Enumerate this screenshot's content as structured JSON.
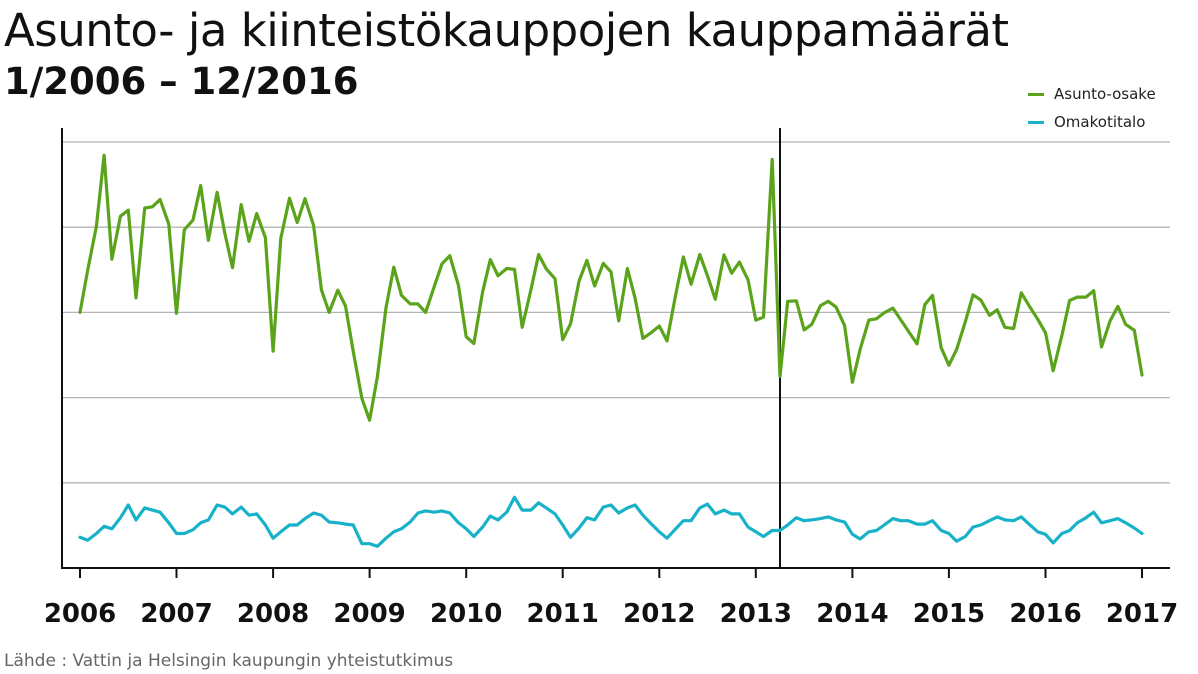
{
  "header": {
    "title": "Asunto- ja kiinteistökauppojen kauppamäärät",
    "subtitle": "1/2006 – 12/2016"
  },
  "source_label": "Lähde : Vattin ja Helsingin kaupungin yhteistutkimus",
  "colors": {
    "asunto": "#5aa31b",
    "omakoti": "#18b2c8",
    "grid": "#b4b4b4",
    "axis": "#111111"
  },
  "chart_data": {
    "type": "line",
    "title": "Asunto- ja kiinteistökauppojen kauppamäärät",
    "subtitle": "1/2006 – 12/2016",
    "xlabel": "",
    "ylabel": "",
    "x_ticks": [
      "2006",
      "2007",
      "2008",
      "2009",
      "2010",
      "2011",
      "2012",
      "2013",
      "2014",
      "2015",
      "2016",
      "2017"
    ],
    "xlim": [
      2006,
      2017
    ],
    "ylim": [
      0,
      100
    ],
    "y_gridlines": [
      0,
      20,
      40,
      60,
      80,
      100
    ],
    "y_tick_labels_shown": false,
    "grid": true,
    "legend_position": "top-right",
    "break_at": 2013.25,
    "series": [
      {
        "name": "Asunto-osake",
        "color": "#5aa31b",
        "points": [
          [
            2006.0,
            60.0
          ],
          [
            2006.08,
            69.9
          ],
          [
            2006.17,
            80.2
          ],
          [
            2006.25,
            96.9
          ],
          [
            2006.33,
            72.5
          ],
          [
            2006.42,
            82.6
          ],
          [
            2006.5,
            84.0
          ],
          [
            2006.58,
            63.4
          ],
          [
            2006.67,
            84.5
          ],
          [
            2006.75,
            84.8
          ],
          [
            2006.83,
            86.5
          ],
          [
            2006.92,
            80.7
          ],
          [
            2007.0,
            59.8
          ],
          [
            2007.08,
            79.4
          ],
          [
            2007.17,
            81.7
          ],
          [
            2007.25,
            89.8
          ],
          [
            2007.33,
            76.9
          ],
          [
            2007.42,
            88.2
          ],
          [
            2007.5,
            78.6
          ],
          [
            2007.58,
            70.5
          ],
          [
            2007.67,
            85.3
          ],
          [
            2007.75,
            76.7
          ],
          [
            2007.83,
            83.2
          ],
          [
            2007.92,
            77.5
          ],
          [
            2008.0,
            50.9
          ],
          [
            2008.08,
            77.4
          ],
          [
            2008.17,
            86.8
          ],
          [
            2008.25,
            81.1
          ],
          [
            2008.33,
            86.7
          ],
          [
            2008.42,
            80.4
          ],
          [
            2008.5,
            65.3
          ],
          [
            2008.58,
            60.0
          ],
          [
            2008.67,
            65.2
          ],
          [
            2008.75,
            61.5
          ],
          [
            2008.83,
            50.9
          ],
          [
            2008.92,
            39.8
          ],
          [
            2009.0,
            34.7
          ],
          [
            2009.08,
            44.9
          ],
          [
            2009.17,
            61.1
          ],
          [
            2009.25,
            70.6
          ],
          [
            2009.33,
            64.0
          ],
          [
            2009.42,
            62.0
          ],
          [
            2009.5,
            62.0
          ],
          [
            2009.58,
            60.0
          ],
          [
            2009.67,
            66.1
          ],
          [
            2009.75,
            71.4
          ],
          [
            2009.83,
            73.3
          ],
          [
            2009.92,
            66.3
          ],
          [
            2010.0,
            54.3
          ],
          [
            2010.08,
            52.7
          ],
          [
            2010.17,
            64.8
          ],
          [
            2010.25,
            72.4
          ],
          [
            2010.33,
            68.6
          ],
          [
            2010.42,
            70.3
          ],
          [
            2010.5,
            70.1
          ],
          [
            2010.58,
            56.5
          ],
          [
            2010.67,
            65.3
          ],
          [
            2010.75,
            73.6
          ],
          [
            2010.83,
            70.2
          ],
          [
            2010.92,
            67.9
          ],
          [
            2011.0,
            53.6
          ],
          [
            2011.08,
            57.3
          ],
          [
            2011.17,
            67.4
          ],
          [
            2011.25,
            72.2
          ],
          [
            2011.33,
            66.2
          ],
          [
            2011.42,
            71.5
          ],
          [
            2011.5,
            69.5
          ],
          [
            2011.58,
            58.0
          ],
          [
            2011.67,
            70.3
          ],
          [
            2011.75,
            63.3
          ],
          [
            2011.83,
            53.9
          ],
          [
            2011.92,
            55.3
          ],
          [
            2012.0,
            56.8
          ],
          [
            2012.08,
            53.3
          ],
          [
            2012.17,
            64.2
          ],
          [
            2012.25,
            73.0
          ],
          [
            2012.33,
            66.6
          ],
          [
            2012.42,
            73.6
          ],
          [
            2012.5,
            68.6
          ],
          [
            2012.58,
            63.1
          ],
          [
            2012.67,
            73.5
          ],
          [
            2012.75,
            69.2
          ],
          [
            2012.83,
            71.8
          ],
          [
            2012.92,
            67.6
          ],
          [
            2013.0,
            58.2
          ],
          [
            2013.08,
            58.9
          ],
          [
            2013.17,
            95.9
          ],
          [
            2013.25,
            45.0
          ],
          [
            2013.33,
            62.6
          ],
          [
            2013.42,
            62.7
          ],
          [
            2013.5,
            55.9
          ],
          [
            2013.58,
            57.2
          ],
          [
            2013.67,
            61.6
          ],
          [
            2013.75,
            62.6
          ],
          [
            2013.83,
            61.3
          ],
          [
            2013.92,
            56.9
          ],
          [
            2014.0,
            43.6
          ],
          [
            2014.08,
            51.3
          ],
          [
            2014.17,
            58.2
          ],
          [
            2014.25,
            58.5
          ],
          [
            2014.33,
            59.9
          ],
          [
            2014.42,
            61.0
          ],
          [
            2014.5,
            58.3
          ],
          [
            2014.58,
            55.6
          ],
          [
            2014.67,
            52.6
          ],
          [
            2014.75,
            61.8
          ],
          [
            2014.83,
            64.0
          ],
          [
            2014.92,
            51.7
          ],
          [
            2015.0,
            47.6
          ],
          [
            2015.08,
            51.3
          ],
          [
            2015.17,
            57.8
          ],
          [
            2015.25,
            64.1
          ],
          [
            2015.33,
            62.9
          ],
          [
            2015.42,
            59.3
          ],
          [
            2015.5,
            60.6
          ],
          [
            2015.58,
            56.5
          ],
          [
            2015.67,
            56.2
          ],
          [
            2015.75,
            64.6
          ],
          [
            2015.83,
            61.6
          ],
          [
            2015.92,
            58.4
          ],
          [
            2016.0,
            55.2
          ],
          [
            2016.08,
            46.3
          ],
          [
            2016.17,
            54.6
          ],
          [
            2016.25,
            62.8
          ],
          [
            2016.33,
            63.6
          ],
          [
            2016.42,
            63.6
          ],
          [
            2016.5,
            65.1
          ],
          [
            2016.58,
            51.9
          ],
          [
            2016.67,
            58.0
          ],
          [
            2016.75,
            61.4
          ],
          [
            2016.83,
            57.2
          ],
          [
            2016.92,
            55.8
          ],
          [
            2017.0,
            45.3
          ]
        ]
      },
      {
        "name": "Omakotitalo",
        "color": "#18b2c8",
        "points": [
          [
            2006.0,
            7.2
          ],
          [
            2006.08,
            6.5
          ],
          [
            2006.17,
            8.1
          ],
          [
            2006.25,
            9.8
          ],
          [
            2006.33,
            9.2
          ],
          [
            2006.42,
            11.8
          ],
          [
            2006.5,
            14.8
          ],
          [
            2006.58,
            11.3
          ],
          [
            2006.67,
            14.1
          ],
          [
            2006.75,
            13.6
          ],
          [
            2006.83,
            13.1
          ],
          [
            2006.92,
            10.6
          ],
          [
            2007.0,
            8.1
          ],
          [
            2007.08,
            8.1
          ],
          [
            2007.17,
            9.0
          ],
          [
            2007.25,
            10.6
          ],
          [
            2007.33,
            11.3
          ],
          [
            2007.42,
            14.8
          ],
          [
            2007.5,
            14.3
          ],
          [
            2007.58,
            12.7
          ],
          [
            2007.67,
            14.3
          ],
          [
            2007.75,
            12.4
          ],
          [
            2007.83,
            12.7
          ],
          [
            2007.92,
            10.1
          ],
          [
            2008.0,
            7.0
          ],
          [
            2008.08,
            8.5
          ],
          [
            2008.17,
            10.1
          ],
          [
            2008.25,
            10.1
          ],
          [
            2008.33,
            11.6
          ],
          [
            2008.42,
            12.9
          ],
          [
            2008.5,
            12.4
          ],
          [
            2008.58,
            10.8
          ],
          [
            2008.67,
            10.6
          ],
          [
            2008.75,
            10.3
          ],
          [
            2008.83,
            10.1
          ],
          [
            2008.92,
            5.7
          ],
          [
            2009.0,
            5.7
          ],
          [
            2009.08,
            5.1
          ],
          [
            2009.17,
            7.0
          ],
          [
            2009.25,
            8.5
          ],
          [
            2009.33,
            9.2
          ],
          [
            2009.42,
            10.8
          ],
          [
            2009.5,
            12.9
          ],
          [
            2009.58,
            13.4
          ],
          [
            2009.67,
            13.1
          ],
          [
            2009.75,
            13.4
          ],
          [
            2009.83,
            12.9
          ],
          [
            2009.92,
            10.6
          ],
          [
            2010.0,
            9.2
          ],
          [
            2010.08,
            7.4
          ],
          [
            2010.17,
            9.6
          ],
          [
            2010.25,
            12.2
          ],
          [
            2010.33,
            11.3
          ],
          [
            2010.42,
            13.1
          ],
          [
            2010.5,
            16.6
          ],
          [
            2010.58,
            13.6
          ],
          [
            2010.67,
            13.6
          ],
          [
            2010.75,
            15.3
          ],
          [
            2010.83,
            14.1
          ],
          [
            2010.92,
            12.7
          ],
          [
            2011.0,
            10.1
          ],
          [
            2011.08,
            7.2
          ],
          [
            2011.17,
            9.4
          ],
          [
            2011.25,
            11.8
          ],
          [
            2011.33,
            11.3
          ],
          [
            2011.42,
            14.3
          ],
          [
            2011.5,
            14.8
          ],
          [
            2011.58,
            12.9
          ],
          [
            2011.67,
            14.1
          ],
          [
            2011.75,
            14.8
          ],
          [
            2011.83,
            12.4
          ],
          [
            2011.92,
            10.3
          ],
          [
            2012.0,
            8.5
          ],
          [
            2012.08,
            7.0
          ],
          [
            2012.17,
            9.2
          ],
          [
            2012.25,
            11.1
          ],
          [
            2012.33,
            11.1
          ],
          [
            2012.42,
            14.1
          ],
          [
            2012.5,
            15.0
          ],
          [
            2012.58,
            12.7
          ],
          [
            2012.67,
            13.6
          ],
          [
            2012.75,
            12.7
          ],
          [
            2012.83,
            12.7
          ],
          [
            2012.92,
            9.6
          ],
          [
            2013.0,
            8.5
          ],
          [
            2013.08,
            7.4
          ],
          [
            2013.17,
            8.8
          ],
          [
            2013.25,
            8.8
          ],
          [
            2013.33,
            10.1
          ],
          [
            2013.42,
            11.8
          ],
          [
            2013.5,
            11.1
          ],
          [
            2013.58,
            11.3
          ],
          [
            2013.67,
            11.6
          ],
          [
            2013.75,
            12.0
          ],
          [
            2013.83,
            11.3
          ],
          [
            2013.92,
            10.8
          ],
          [
            2014.0,
            7.9
          ],
          [
            2014.08,
            6.8
          ],
          [
            2014.17,
            8.5
          ],
          [
            2014.25,
            8.8
          ],
          [
            2014.33,
            10.1
          ],
          [
            2014.42,
            11.6
          ],
          [
            2014.5,
            11.1
          ],
          [
            2014.58,
            11.1
          ],
          [
            2014.67,
            10.3
          ],
          [
            2014.75,
            10.3
          ],
          [
            2014.83,
            11.1
          ],
          [
            2014.92,
            8.8
          ],
          [
            2015.0,
            8.1
          ],
          [
            2015.08,
            6.3
          ],
          [
            2015.17,
            7.4
          ],
          [
            2015.25,
            9.6
          ],
          [
            2015.33,
            10.1
          ],
          [
            2015.42,
            11.1
          ],
          [
            2015.5,
            12.0
          ],
          [
            2015.58,
            11.3
          ],
          [
            2015.67,
            11.1
          ],
          [
            2015.75,
            12.0
          ],
          [
            2015.83,
            10.3
          ],
          [
            2015.92,
            8.5
          ],
          [
            2016.0,
            7.9
          ],
          [
            2016.08,
            5.9
          ],
          [
            2016.17,
            8.1
          ],
          [
            2016.25,
            8.8
          ],
          [
            2016.33,
            10.6
          ],
          [
            2016.42,
            11.8
          ],
          [
            2016.5,
            13.1
          ],
          [
            2016.58,
            10.6
          ],
          [
            2016.67,
            11.1
          ],
          [
            2016.75,
            11.6
          ],
          [
            2016.83,
            10.6
          ],
          [
            2016.92,
            9.4
          ],
          [
            2017.0,
            8.1
          ]
        ]
      }
    ]
  }
}
